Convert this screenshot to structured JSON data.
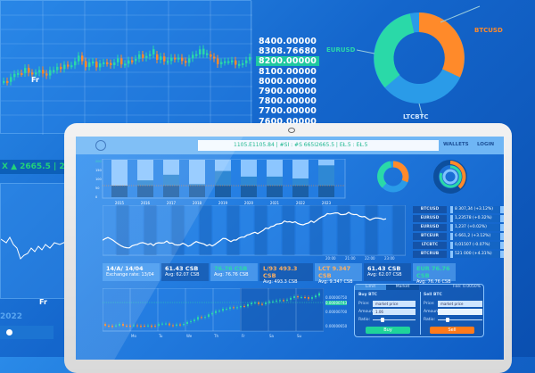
{
  "background_chart": {
    "price_labels": [
      "8400.00000",
      "8308.76680",
      "8200.00000",
      "8100.00000",
      "8000.00000",
      "7900.00000",
      "7800.00000",
      "7700.00000",
      "7600.00000"
    ],
    "highlighted_price": "8200.00000",
    "day_label": "Fr",
    "ticker": "X ▲ 2665.5 | 26",
    "lower_day_label": "Fr",
    "year": "2022"
  },
  "big_donut": {
    "labels": {
      "eurusd": "EURUSD",
      "btcusd": "BTCUSD",
      "ltcbtc": "LTCBTC"
    },
    "colors": {
      "eurusd": "#2ad9a8",
      "btcusd": "#ff8a2a",
      "ltcbtc": "#2a9be8"
    }
  },
  "app": {
    "address_text": "1105.E1105.84 | #SI : #S 665I2665.5 | EŁ.5 : EŁ.5",
    "nav": {
      "wallets": "WALLETS",
      "login": "LOGIN"
    },
    "bar_chart": {
      "years": [
        "2015",
        "2016",
        "2017",
        "2018",
        "2019",
        "2020",
        "2021",
        "2022",
        "2023"
      ],
      "y_ticks": [
        "200",
        "150",
        "100",
        "50",
        "0"
      ]
    },
    "line_chart": {
      "time_labels": [
        "20:00",
        "21:00",
        "22:00",
        "23:00"
      ]
    },
    "pairs": [
      {
        "name": "BTCUSD",
        "value": "8 307,34 (+3.12%)"
      },
      {
        "name": "EURUSD",
        "value": "1,23578 (+0.32%)"
      },
      {
        "name": "EURUSD",
        "value": "1,237 (+0.02%)"
      },
      {
        "name": "BTCEUR",
        "value": "6 661,2 (+3.12%)"
      },
      {
        "name": "LTCBTC",
        "value": "0,01507 (-0.07%)"
      },
      {
        "name": "BTCRUB",
        "value": "521 000 (+4.31%)"
      }
    ],
    "cards": [
      {
        "title": "14/A/ 14/04",
        "sub": "Exchange rate: 13/04"
      },
      {
        "title": "61.43 CSB",
        "sub": "Avg: 62.07 CSB"
      },
      {
        "title": "76.76 CSB",
        "sub": "Avg: 76.76 CSB"
      },
      {
        "title": "L/93 493.3 CSB",
        "sub": "Avg: 493.3 CSB"
      },
      {
        "title": "LCT 9.347 CSB",
        "sub": "Avg: 9.347 CSB"
      },
      {
        "title": "61.43 CSB",
        "sub": "Avg: 62.07 CSB"
      },
      {
        "title": "EUR 76.76 CSB",
        "sub": "Avg: 76.76 CSB"
      }
    ],
    "candle_chart": {
      "days": [
        "Mo",
        "Tu",
        "We",
        "Th",
        "Fr",
        "Sa",
        "Su"
      ],
      "prices": [
        "0.00000750",
        "0.00000743",
        "0.00000700",
        "0.00000650"
      ]
    },
    "order": {
      "tabs": [
        "Limit",
        "Market"
      ],
      "fee": "Fee: 0.0050%",
      "buy": {
        "title": "Buy BTC",
        "price_label": "Price:",
        "price": "market price",
        "amount_label": "Amount:",
        "amount": "1.06",
        "ratio_label": "Ratio:",
        "button": "Buy",
        "unit": "BTC"
      },
      "sell": {
        "title": "Sell BTC",
        "price_label": "Price:",
        "price": "market price",
        "amount_label": "Amount:",
        "amount": "",
        "ratio_label": "Ratio:",
        "button": "Sell",
        "unit": "BTC"
      },
      "buy_ratio": 0.2,
      "sell_ratio": 0.2
    }
  }
}
